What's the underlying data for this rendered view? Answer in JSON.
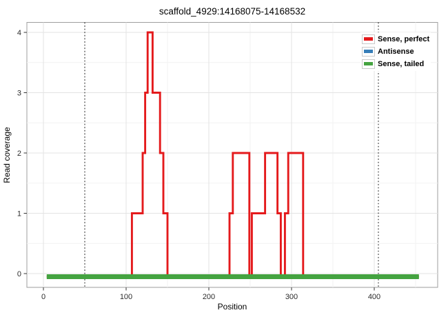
{
  "figure": {
    "title": "scaffold_4929:14168075-14168532",
    "xlabel": "Position",
    "ylabel": "Read coverage"
  },
  "legend": {
    "entries": [
      {
        "label": "Sense, perfect",
        "color": "#E41A1C"
      },
      {
        "label": "Antisense",
        "color": "#377EB8"
      },
      {
        "label": "Sense, tailed",
        "color": "#44A340"
      }
    ]
  },
  "chart_data": {
    "type": "line",
    "subtype": "step-coverage",
    "title": "scaffold_4929:14168075-14168532",
    "xlabel": "Position",
    "ylabel": "Read coverage",
    "xlim": [
      -20,
      477
    ],
    "ylim": [
      -0.23,
      4.16
    ],
    "x_ticks": [
      0,
      100,
      200,
      300,
      400
    ],
    "y_ticks": [
      0,
      1,
      2,
      3,
      4
    ],
    "grid": true,
    "legend_position": "top-right-inside",
    "guide_lines_x": [
      50,
      405
    ],
    "guide_line_style": "dotted-black-vertical",
    "series": [
      {
        "name": "Sense, perfect",
        "color": "#E41A1C",
        "points": [
          [
            4,
            0
          ],
          [
            107,
            0
          ],
          [
            107,
            1
          ],
          [
            120,
            1
          ],
          [
            120,
            2
          ],
          [
            123,
            2
          ],
          [
            123,
            3
          ],
          [
            126,
            3
          ],
          [
            126,
            4
          ],
          [
            132,
            4
          ],
          [
            132,
            3
          ],
          [
            141,
            3
          ],
          [
            141,
            2
          ],
          [
            145,
            2
          ],
          [
            145,
            1
          ],
          [
            150,
            1
          ],
          [
            150,
            0
          ],
          [
            225,
            0
          ],
          [
            225,
            1
          ],
          [
            229,
            1
          ],
          [
            229,
            2
          ],
          [
            249,
            2
          ],
          [
            249,
            0
          ],
          [
            252,
            0
          ],
          [
            252,
            1
          ],
          [
            268,
            1
          ],
          [
            268,
            2
          ],
          [
            283,
            2
          ],
          [
            283,
            1
          ],
          [
            287,
            1
          ],
          [
            287,
            0
          ],
          [
            292,
            0
          ],
          [
            292,
            1
          ],
          [
            296,
            1
          ],
          [
            296,
            2
          ],
          [
            314,
            2
          ],
          [
            314,
            0
          ],
          [
            454,
            0
          ]
        ]
      },
      {
        "name": "Antisense",
        "color": "#377EB8",
        "points": []
      },
      {
        "name": "Sense, tailed",
        "color": "#44A340",
        "points": [
          [
            4,
            0
          ],
          [
            454,
            0
          ]
        ]
      }
    ]
  }
}
